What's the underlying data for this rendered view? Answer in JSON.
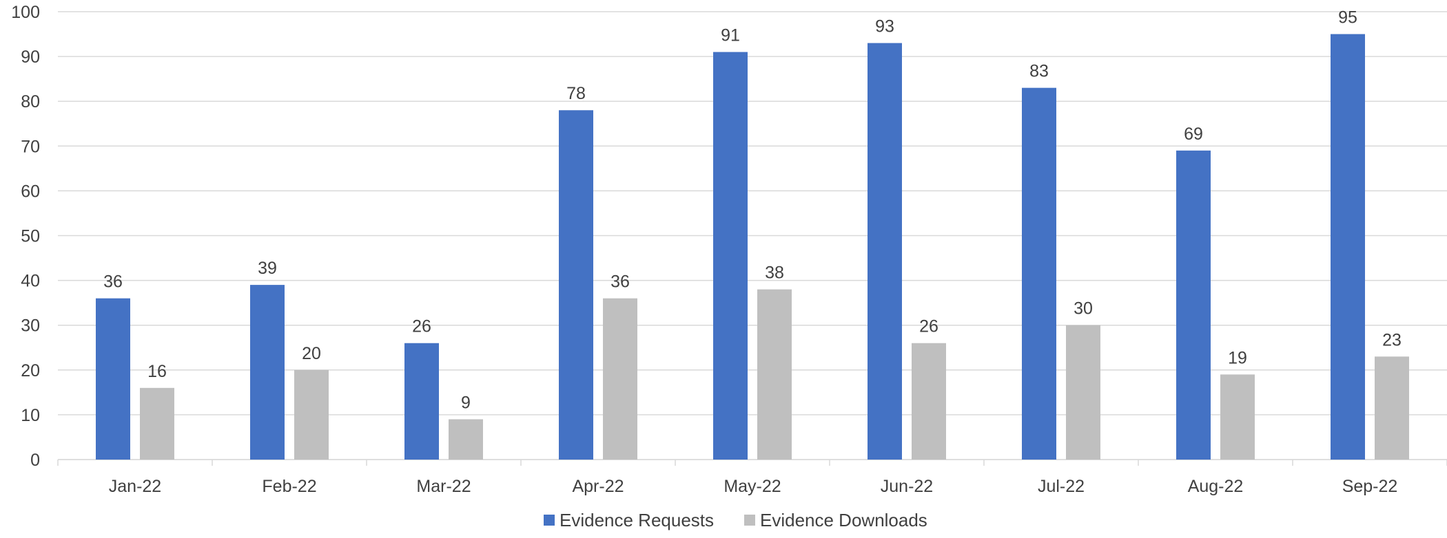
{
  "chart_data": {
    "type": "bar",
    "title": "",
    "xlabel": "",
    "ylabel": "",
    "categories": [
      "Jan-22",
      "Feb-22",
      "Mar-22",
      "Apr-22",
      "May-22",
      "Jun-22",
      "Jul-22",
      "Aug-22",
      "Sep-22"
    ],
    "series": [
      {
        "name": "Evidence Requests",
        "color": "#4472C4",
        "values": [
          36,
          39,
          26,
          78,
          91,
          93,
          83,
          69,
          95
        ]
      },
      {
        "name": "Evidence Downloads",
        "color": "#BFBFBF",
        "values": [
          16,
          20,
          9,
          36,
          38,
          26,
          30,
          19,
          23
        ]
      }
    ],
    "ylim": [
      0,
      100
    ],
    "yticks": [
      0,
      10,
      20,
      30,
      40,
      50,
      60,
      70,
      80,
      90,
      100
    ],
    "grid": true,
    "data_labels": true,
    "legend": {
      "position": "bottom"
    },
    "gridline_color": "#D9D9D9",
    "text_color": "#404040"
  }
}
